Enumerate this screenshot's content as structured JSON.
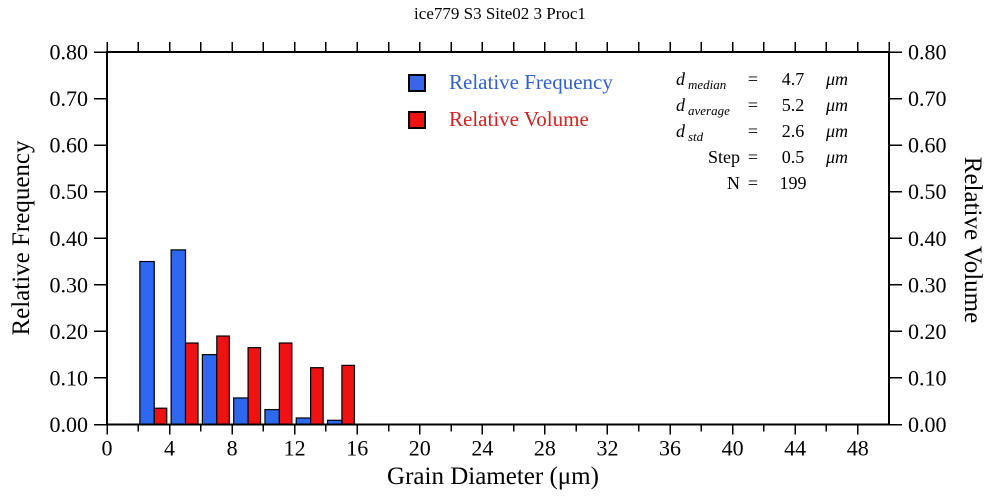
{
  "title": "ice779 S3 Site02 3 Proc1",
  "legend": {
    "items": [
      {
        "label": "Relative Frequency",
        "text_color": "#3161d1",
        "swatch_color": "#3767e8"
      },
      {
        "label": "Relative Volume",
        "text_color": "#d62020",
        "swatch_color": "#ee1212"
      }
    ]
  },
  "stats": {
    "rows": [
      {
        "name": "d",
        "sub": "median",
        "eq": "=",
        "value": "4.7",
        "unit": "μm"
      },
      {
        "name": "d",
        "sub": "average",
        "eq": "=",
        "value": "5.2",
        "unit": "μm"
      },
      {
        "name": "d",
        "sub": "std",
        "eq": "=",
        "value": "2.6",
        "unit": "μm"
      },
      {
        "name": "Step",
        "sub": "",
        "eq": "=",
        "value": "0.5",
        "unit": "μm"
      },
      {
        "name": "N",
        "sub": "",
        "eq": "=",
        "value": "199",
        "unit": ""
      }
    ]
  },
  "chart_data": {
    "type": "bar",
    "title": "ice779 S3 Site02 3 Proc1",
    "xlabel": "Grain Diameter (μm)",
    "ylabel_left": "Relative Frequency",
    "ylabel_right": "Relative Volume",
    "xlim": [
      0,
      50
    ],
    "ylim": [
      0,
      0.8
    ],
    "grid": false,
    "legend_position": "upper-center",
    "x_major_ticks": [
      0,
      4,
      8,
      12,
      16,
      20,
      24,
      28,
      32,
      36,
      40,
      44,
      48
    ],
    "x_tick_labels": [
      "0",
      "4",
      "8",
      "12",
      "16",
      "20",
      "24",
      "28",
      "32",
      "36",
      "40",
      "44",
      "48"
    ],
    "x_minor_ticks": [
      2,
      6,
      10,
      14,
      18,
      22,
      26,
      30,
      34,
      38,
      42,
      46
    ],
    "top_ticks": [
      0,
      2,
      4,
      6,
      8,
      10,
      12,
      14,
      16,
      18,
      20,
      22,
      24,
      26,
      28,
      30,
      32,
      34,
      36,
      38,
      40,
      42,
      44,
      46,
      48,
      50
    ],
    "y_ticks": [
      0,
      0.1,
      0.2,
      0.3,
      0.4,
      0.5,
      0.6,
      0.7,
      0.8
    ],
    "y_tick_labels": [
      "0.00",
      "0.10",
      "0.20",
      "0.30",
      "0.40",
      "0.50",
      "0.60",
      "0.70",
      "0.80"
    ],
    "bin_ranges": [
      [
        2,
        4
      ],
      [
        4,
        6
      ],
      [
        6,
        8
      ],
      [
        8,
        10
      ],
      [
        10,
        12
      ],
      [
        12,
        14
      ],
      [
        14,
        16
      ]
    ],
    "bin_centers": [
      3,
      5,
      7,
      9,
      11,
      13,
      15
    ],
    "series": [
      {
        "name": "Relative Frequency",
        "color": "#2d68f0",
        "values": [
          0.35,
          0.375,
          0.15,
          0.057,
          0.032,
          0.014,
          0.009
        ]
      },
      {
        "name": "Relative Volume",
        "color": "#ee1212",
        "values": [
          0.035,
          0.175,
          0.19,
          0.165,
          0.175,
          0.122,
          0.127
        ]
      }
    ]
  }
}
